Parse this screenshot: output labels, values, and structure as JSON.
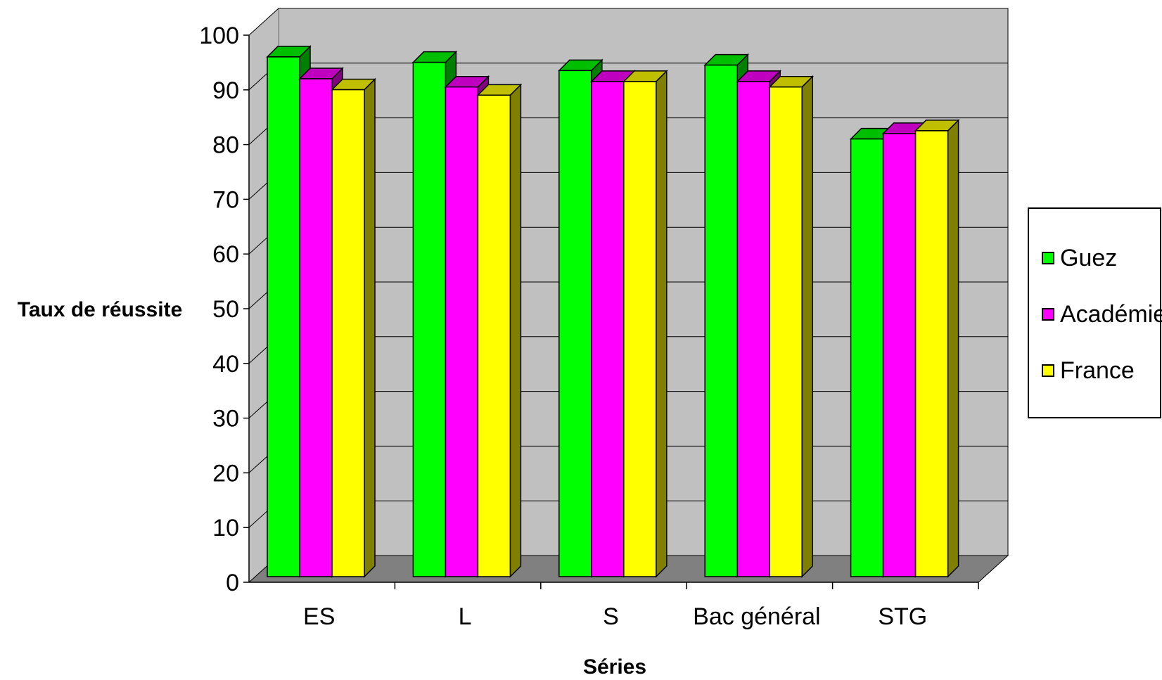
{
  "chart_data": {
    "type": "bar",
    "title": "",
    "xlabel": "Séries",
    "ylabel": "Taux de réussite",
    "ylim": [
      0,
      100
    ],
    "yticks": [
      "0",
      "10",
      "20",
      "30",
      "40",
      "50",
      "60",
      "70",
      "80",
      "90",
      "100"
    ],
    "categories": [
      "ES",
      "L",
      "S",
      "Bac général",
      "STG"
    ],
    "series": [
      {
        "name": "Guez",
        "color": "#00ff00",
        "values": [
          95,
          94,
          92.5,
          93.5,
          80
        ]
      },
      {
        "name": "Académie",
        "color": "#ff00ff",
        "values": [
          91,
          89.5,
          90.5,
          90.5,
          81
        ]
      },
      {
        "name": "France",
        "color": "#ffff00",
        "values": [
          89,
          88,
          90.5,
          89.5,
          81.5
        ]
      }
    ],
    "legend_position": "right",
    "grid": true,
    "style": "3d-clustered"
  }
}
